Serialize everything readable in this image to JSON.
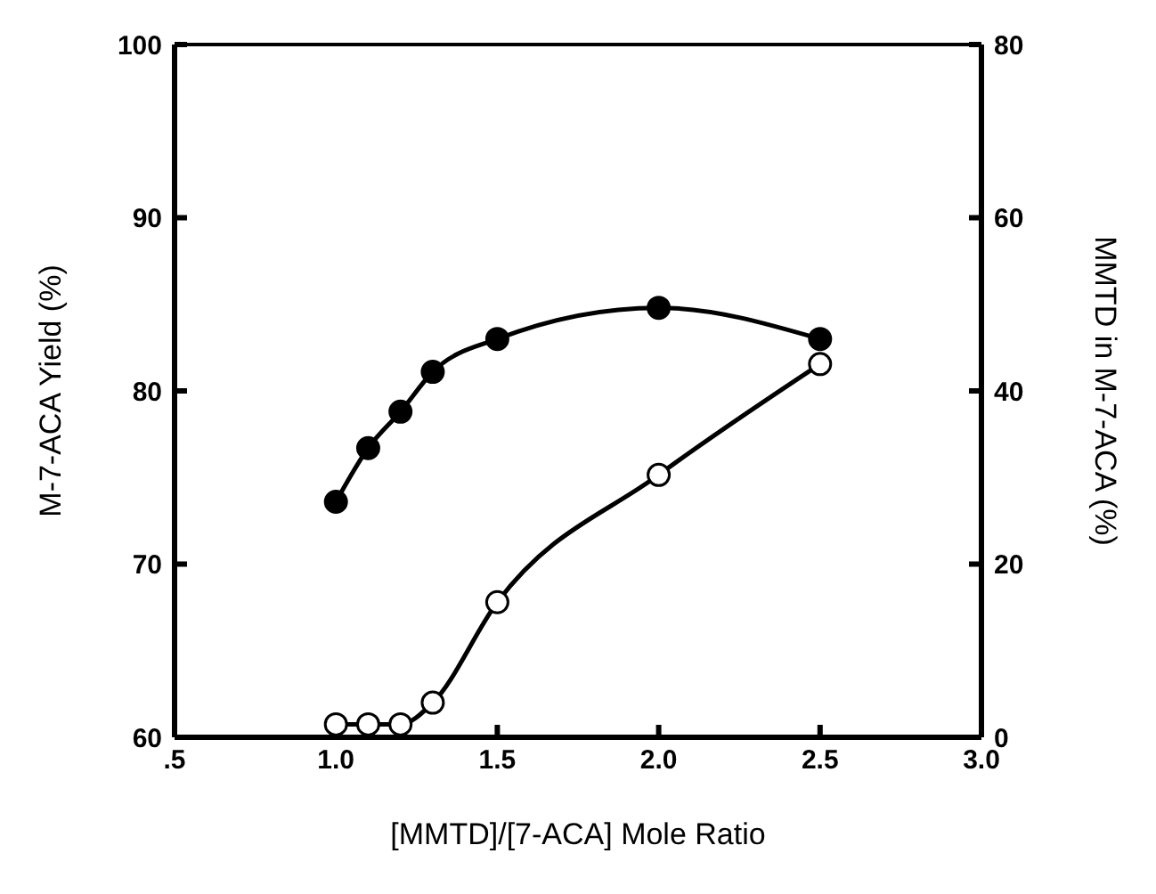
{
  "chart_data": {
    "type": "line",
    "xlabel": "[MMTD]/[7-ACA] Mole Ratio",
    "ylabel": "M-7-ACA Yield (%)",
    "y2label": "MMTD in M-7-ACA (%)",
    "x": [
      1.0,
      1.1,
      1.2,
      1.3,
      1.5,
      2.0,
      2.5
    ],
    "series": [
      {
        "color": "#000000",
        "values": [
          73.6,
          76.7,
          78.8,
          81.1,
          83.0,
          84.8,
          83.0
        ]
      },
      {
        "color": "#000000",
        "axis": "y2",
        "values": [
          1.5,
          1.5,
          1.5,
          4.0,
          15.6,
          30.3,
          43.1
        ]
      }
    ],
    "xlim": [
      0.5,
      3.0
    ],
    "xticks": [
      {
        "value": 0.5,
        "label": ".5"
      },
      {
        "value": 1.0,
        "label": "1.0"
      },
      {
        "value": 1.5,
        "label": "1.5"
      },
      {
        "value": 2.0,
        "label": "2.0"
      },
      {
        "value": 2.5,
        "label": "2.5"
      },
      {
        "value": 3.0,
        "label": "3.0"
      }
    ],
    "ylim": [
      60,
      100
    ],
    "yticks": [
      60,
      70,
      80,
      90,
      100
    ],
    "y2lim": [
      0,
      80
    ],
    "y2ticks": [
      0,
      20,
      40,
      60,
      80
    ],
    "marker": "circle",
    "line_style": "solid",
    "grid": false,
    "legend": false
  }
}
